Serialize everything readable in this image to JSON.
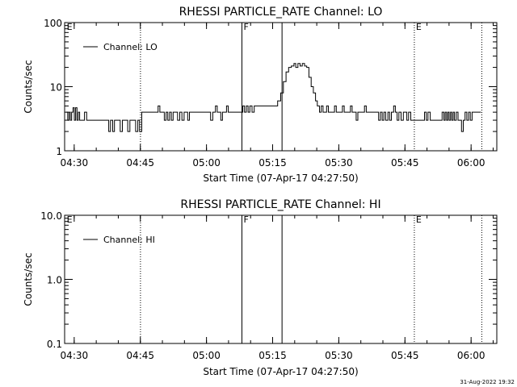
{
  "footer": {
    "stamp": "31-Aug-2022 19:32"
  },
  "chart_data": [
    {
      "type": "line",
      "title": "RHESSI PARTICLE_RATE Channel: LO",
      "xlabel": "Start Time (07-Apr-17 04:27:50)",
      "ylabel": "Counts/sec",
      "x_unit": "minutes since 04:27:50",
      "xlim": [
        0,
        98
      ],
      "x_ticks": [
        {
          "x": 2.17,
          "label": "04:30"
        },
        {
          "x": 17.17,
          "label": "04:45"
        },
        {
          "x": 32.17,
          "label": "05:00"
        },
        {
          "x": 47.17,
          "label": "05:15"
        },
        {
          "x": 62.17,
          "label": "05:30"
        },
        {
          "x": 77.17,
          "label": "05:45"
        },
        {
          "x": 92.17,
          "label": "06:00"
        }
      ],
      "y_scale": "log",
      "ylim": [
        1,
        100
      ],
      "y_ticks": [
        {
          "y": 1,
          "label": "1"
        },
        {
          "y": 10,
          "label": "10"
        },
        {
          "y": 100,
          "label": "100"
        }
      ],
      "legend": {
        "label": "Channel: LO",
        "position": "top-left"
      },
      "vlines": [
        {
          "x": 17.2,
          "style": "dotted"
        },
        {
          "x": 40.2,
          "style": "solid",
          "label": "F"
        },
        {
          "x": 49.3,
          "style": "solid"
        },
        {
          "x": 79.3,
          "style": "dotted",
          "label": "E"
        },
        {
          "x": 94.6,
          "style": "dotted"
        }
      ],
      "edge_labels": [
        {
          "x": 0.3,
          "label": "E"
        }
      ],
      "series": [
        {
          "name": "Channel: LO",
          "points": [
            [
              0.4,
              4
            ],
            [
              0.7,
              3
            ],
            [
              1.0,
              4
            ],
            [
              1.3,
              3
            ],
            [
              1.6,
              4
            ],
            [
              1.9,
              4.7
            ],
            [
              2.2,
              3
            ],
            [
              2.5,
              4.7
            ],
            [
              2.8,
              3
            ],
            [
              3.1,
              4
            ],
            [
              3.4,
              3
            ],
            [
              3.7,
              3
            ],
            [
              4.5,
              4
            ],
            [
              5.0,
              3
            ],
            [
              6,
              3
            ],
            [
              8,
              3
            ],
            [
              9.5,
              3
            ],
            [
              10.0,
              2
            ],
            [
              10.4,
              3
            ],
            [
              10.9,
              2
            ],
            [
              11.3,
              3
            ],
            [
              12,
              3
            ],
            [
              12.6,
              2
            ],
            [
              13.1,
              3
            ],
            [
              13.8,
              3
            ],
            [
              14.3,
              2
            ],
            [
              14.8,
              3
            ],
            [
              15.5,
              3
            ],
            [
              16.1,
              2
            ],
            [
              16.6,
              3
            ],
            [
              17.0,
              2
            ],
            [
              17.5,
              4
            ],
            [
              19,
              4
            ],
            [
              20.5,
              4
            ],
            [
              21.2,
              5
            ],
            [
              21.6,
              4
            ],
            [
              22.2,
              4
            ],
            [
              22.6,
              3
            ],
            [
              23.0,
              4
            ],
            [
              23.4,
              3
            ],
            [
              23.8,
              4
            ],
            [
              24.2,
              3
            ],
            [
              24.6,
              4
            ],
            [
              25.2,
              4
            ],
            [
              25.6,
              3
            ],
            [
              26.1,
              4
            ],
            [
              26.6,
              3
            ],
            [
              27.1,
              4
            ],
            [
              27.5,
              4
            ],
            [
              27.9,
              3
            ],
            [
              28.3,
              4
            ],
            [
              29,
              4
            ],
            [
              30,
              4
            ],
            [
              31,
              4
            ],
            [
              32,
              4
            ],
            [
              32.8,
              4
            ],
            [
              33.1,
              3
            ],
            [
              33.6,
              4
            ],
            [
              34.2,
              5
            ],
            [
              34.6,
              4
            ],
            [
              35.0,
              4
            ],
            [
              35.4,
              3
            ],
            [
              35.8,
              4
            ],
            [
              36.3,
              4
            ],
            [
              36.7,
              5
            ],
            [
              37.1,
              4
            ],
            [
              38,
              4
            ],
            [
              39.5,
              4
            ],
            [
              40.0,
              4
            ],
            [
              40.4,
              5
            ],
            [
              40.8,
              4
            ],
            [
              41.2,
              5
            ],
            [
              41.6,
              4
            ],
            [
              42.0,
              5
            ],
            [
              42.5,
              4
            ],
            [
              43.0,
              5
            ],
            [
              44,
              5
            ],
            [
              46,
              5
            ],
            [
              47.5,
              5
            ],
            [
              48.3,
              6
            ],
            [
              49.0,
              8
            ],
            [
              49.6,
              12
            ],
            [
              50.2,
              17
            ],
            [
              50.8,
              20
            ],
            [
              51.4,
              21
            ],
            [
              52.0,
              23
            ],
            [
              52.4,
              20
            ],
            [
              52.9,
              23
            ],
            [
              53.4,
              21
            ],
            [
              53.9,
              23
            ],
            [
              54.4,
              21
            ],
            [
              54.9,
              20
            ],
            [
              55.4,
              14
            ],
            [
              55.9,
              10
            ],
            [
              56.4,
              8
            ],
            [
              56.9,
              6
            ],
            [
              57.3,
              5
            ],
            [
              57.8,
              4
            ],
            [
              58.2,
              5
            ],
            [
              58.6,
              4
            ],
            [
              59.0,
              4
            ],
            [
              59.4,
              5
            ],
            [
              59.8,
              4
            ],
            [
              60.3,
              4
            ],
            [
              60.8,
              4
            ],
            [
              61.2,
              5
            ],
            [
              61.6,
              4
            ],
            [
              62.0,
              4
            ],
            [
              62.6,
              4
            ],
            [
              63.0,
              5
            ],
            [
              63.4,
              4
            ],
            [
              63.8,
              4
            ],
            [
              64.4,
              4
            ],
            [
              64.8,
              5
            ],
            [
              65.2,
              4
            ],
            [
              65.6,
              4
            ],
            [
              66.1,
              3
            ],
            [
              66.5,
              4
            ],
            [
              67.0,
              4
            ],
            [
              67.6,
              4
            ],
            [
              68.0,
              5
            ],
            [
              68.4,
              4
            ],
            [
              69,
              4
            ],
            [
              70,
              4
            ],
            [
              70.8,
              4
            ],
            [
              71.2,
              3
            ],
            [
              71.6,
              4
            ],
            [
              72.0,
              3
            ],
            [
              72.4,
              4
            ],
            [
              72.8,
              3
            ],
            [
              73.3,
              4
            ],
            [
              73.7,
              3
            ],
            [
              74.1,
              4
            ],
            [
              74.6,
              5
            ],
            [
              75.0,
              4
            ],
            [
              75.4,
              3
            ],
            [
              75.8,
              4
            ],
            [
              76.3,
              3
            ],
            [
              76.8,
              4
            ],
            [
              77.2,
              4
            ],
            [
              77.6,
              3
            ],
            [
              78.0,
              4
            ],
            [
              78.5,
              3
            ],
            [
              79,
              3
            ],
            [
              80,
              3
            ],
            [
              81,
              3
            ],
            [
              81.6,
              4
            ],
            [
              82.0,
              3
            ],
            [
              82.4,
              4
            ],
            [
              82.9,
              3
            ],
            [
              83.4,
              3
            ],
            [
              84,
              3
            ],
            [
              85,
              3
            ],
            [
              85.6,
              4
            ],
            [
              86.0,
              3
            ],
            [
              86.3,
              4
            ],
            [
              86.6,
              3
            ],
            [
              86.9,
              4
            ],
            [
              87.2,
              3
            ],
            [
              87.5,
              4
            ],
            [
              87.8,
              3
            ],
            [
              88.1,
              4
            ],
            [
              88.4,
              3
            ],
            [
              88.8,
              4
            ],
            [
              89.2,
              3
            ],
            [
              89.6,
              3
            ],
            [
              90.0,
              2
            ],
            [
              90.4,
              3
            ],
            [
              90.8,
              4
            ],
            [
              91.2,
              3
            ],
            [
              91.6,
              4
            ],
            [
              92.0,
              3
            ],
            [
              92.4,
              4
            ],
            [
              93,
              4
            ],
            [
              94.4,
              4
            ]
          ]
        }
      ]
    },
    {
      "type": "line",
      "title": "RHESSI PARTICLE_RATE Channel: HI",
      "xlabel": "Start Time (07-Apr-17 04:27:50)",
      "ylabel": "Counts/sec",
      "x_unit": "minutes since 04:27:50",
      "xlim": [
        0,
        98
      ],
      "x_ticks": [
        {
          "x": 2.17,
          "label": "04:30"
        },
        {
          "x": 17.17,
          "label": "04:45"
        },
        {
          "x": 32.17,
          "label": "05:00"
        },
        {
          "x": 47.17,
          "label": "05:15"
        },
        {
          "x": 62.17,
          "label": "05:30"
        },
        {
          "x": 77.17,
          "label": "05:45"
        },
        {
          "x": 92.17,
          "label": "06:00"
        }
      ],
      "y_scale": "log",
      "ylim": [
        0.1,
        10
      ],
      "y_ticks": [
        {
          "y": 0.1,
          "label": "0.1"
        },
        {
          "y": 1,
          "label": "1.0"
        },
        {
          "y": 10,
          "label": "10.0"
        }
      ],
      "legend": {
        "label": "Channel: HI",
        "position": "top-left"
      },
      "vlines": [
        {
          "x": 17.2,
          "style": "dotted"
        },
        {
          "x": 40.2,
          "style": "solid",
          "label": "F"
        },
        {
          "x": 49.3,
          "style": "solid"
        },
        {
          "x": 79.3,
          "style": "dotted",
          "label": "E"
        },
        {
          "x": 94.6,
          "style": "dotted"
        }
      ],
      "edge_labels": [
        {
          "x": 0.3,
          "label": "E"
        }
      ],
      "series": [
        {
          "name": "Channel: HI",
          "points": []
        }
      ]
    }
  ]
}
